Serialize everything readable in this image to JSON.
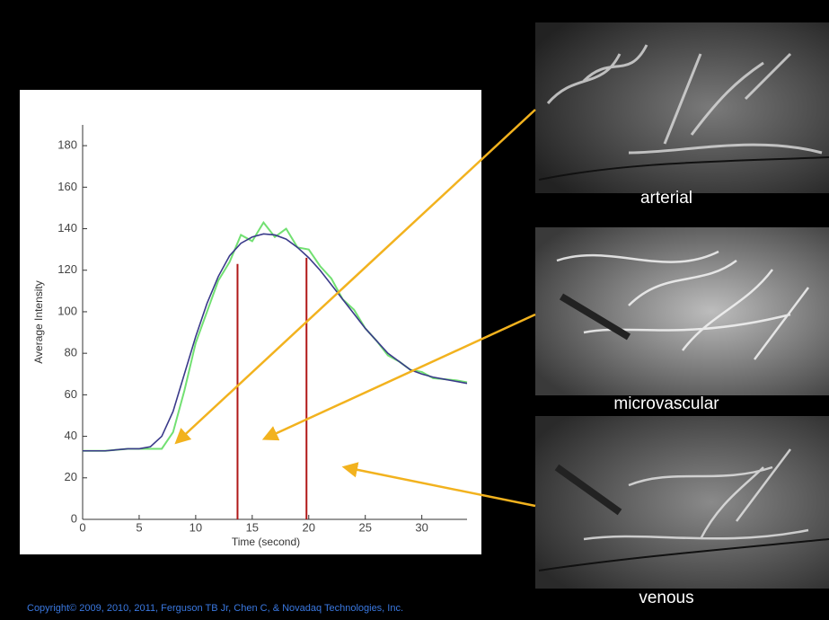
{
  "chart_data": {
    "type": "line",
    "xlabel": "Time (second)",
    "ylabel": "Average Intensity",
    "x": [
      0,
      1,
      2,
      3,
      4,
      5,
      6,
      7,
      8,
      9,
      10,
      11,
      12,
      13,
      14,
      15,
      16,
      17,
      18,
      19,
      20,
      21,
      22,
      23,
      24,
      25,
      26,
      27,
      28,
      29,
      30,
      31,
      32,
      33,
      34
    ],
    "series": [
      {
        "color": "#72e072",
        "values": [
          33,
          33,
          33,
          33.5,
          34,
          34,
          34,
          34,
          42,
          62,
          85,
          100,
          115,
          124,
          137,
          134,
          143,
          136,
          140,
          131,
          130,
          122,
          116,
          106,
          101,
          92,
          86,
          79,
          76,
          72,
          71,
          68,
          67.5,
          67,
          66
        ]
      },
      {
        "color": "#3a3a8a",
        "values": [
          33,
          33,
          33,
          33.5,
          34,
          34,
          35,
          40,
          52,
          70,
          88,
          104,
          117,
          127,
          133,
          136,
          137.5,
          137,
          135,
          131,
          126,
          120,
          113,
          106,
          99,
          92,
          86,
          80,
          76,
          72,
          70,
          68.5,
          67.5,
          66.5,
          65.5
        ]
      }
    ],
    "vlines": {
      "color": "#b01818",
      "x": [
        13.7,
        19.8
      ],
      "values": [
        123,
        126
      ]
    },
    "xlim": [
      0,
      34
    ],
    "xticks": [
      0,
      5,
      10,
      15,
      20,
      25,
      30
    ],
    "ylim": [
      0,
      190
    ],
    "yticks": [
      0,
      20,
      40,
      60,
      80,
      100,
      120,
      140,
      160,
      180
    ]
  },
  "images": [
    {
      "label": "arterial"
    },
    {
      "label": "microvascular"
    },
    {
      "label": "venous"
    }
  ],
  "footer": "Copyright© 2009, 2010, 2011, Ferguson TB Jr, Chen C, & Novadaq Technologies, Inc."
}
